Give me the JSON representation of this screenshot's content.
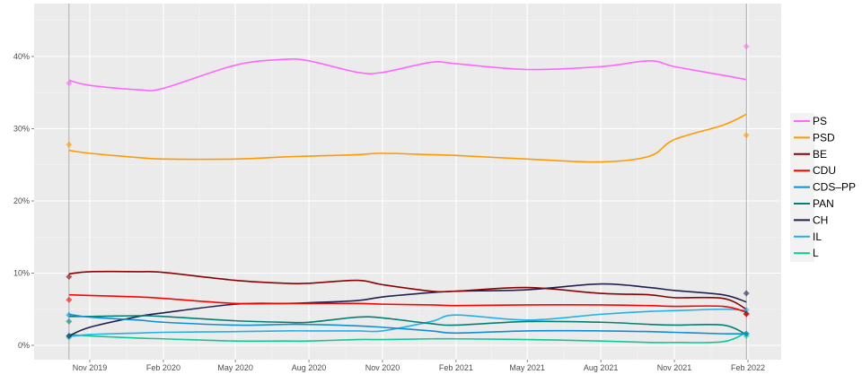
{
  "chart_data": {
    "type": "line",
    "title": "",
    "xlabel": "",
    "ylabel": "",
    "ylim": [
      -1.5,
      47
    ],
    "xlim": [
      "2019-09-10",
      "2022-02-20"
    ],
    "grid": true,
    "legend_position": "right",
    "y_ticks": [
      "0%",
      "10%",
      "20%",
      "30%",
      "40%"
    ],
    "y_tick_values": [
      0,
      10,
      20,
      30,
      40
    ],
    "x_ticks": [
      "Nov 2019",
      "Feb 2020",
      "May 2020",
      "Aug 2020",
      "Nov 2020",
      "Feb 2021",
      "May 2021",
      "Aug 2021",
      "Nov 2021",
      "Feb 2022"
    ],
    "x_tick_dates": [
      "2019-11-01",
      "2020-02-01",
      "2020-05-01",
      "2020-08-01",
      "2020-11-01",
      "2021-02-01",
      "2021-05-01",
      "2021-08-01",
      "2021-11-01",
      "2022-02-01"
    ],
    "election_dates": [
      "2019-10-06",
      "2022-01-30"
    ],
    "x": [
      "2019-10-06",
      "2019-11-01",
      "2020-01-01",
      "2020-02-01",
      "2020-05-01",
      "2020-07-01",
      "2020-08-01",
      "2020-10-01",
      "2020-11-01",
      "2021-01-01",
      "2021-02-01",
      "2021-05-01",
      "2021-08-01",
      "2021-10-01",
      "2021-11-01",
      "2022-01-01",
      "2022-01-30"
    ],
    "series": [
      {
        "name": "PS",
        "color": "#ff66ff",
        "values": [
          36.7,
          36.0,
          35.4,
          35.6,
          38.8,
          39.6,
          39.4,
          37.8,
          37.8,
          39.2,
          39.0,
          38.2,
          38.6,
          39.4,
          38.6,
          37.4,
          36.8
        ],
        "election_results": [
          36.3,
          41.4
        ]
      },
      {
        "name": "PSD",
        "color": "#ff9900",
        "values": [
          27.0,
          26.6,
          26.0,
          25.8,
          25.8,
          26.1,
          26.2,
          26.4,
          26.6,
          26.4,
          26.3,
          25.8,
          25.4,
          26.2,
          28.5,
          30.5,
          32.0
        ],
        "election_results": [
          27.8,
          29.1
        ]
      },
      {
        "name": "BE",
        "color": "#8b0000",
        "values": [
          9.9,
          10.2,
          10.2,
          10.1,
          9.0,
          8.6,
          8.6,
          9.0,
          8.4,
          7.5,
          7.5,
          8.0,
          7.2,
          7.0,
          6.6,
          6.5,
          5.0
        ],
        "election_results": [
          9.5,
          4.4
        ]
      },
      {
        "name": "CDU",
        "color": "#ff0000",
        "values": [
          7.0,
          6.9,
          6.7,
          6.5,
          5.8,
          5.8,
          5.8,
          5.8,
          5.7,
          5.6,
          5.5,
          5.6,
          5.6,
          5.5,
          5.4,
          5.4,
          4.6
        ],
        "election_results": [
          6.3,
          4.3
        ]
      },
      {
        "name": "CDS–PP",
        "color": "#0b8fd8",
        "values": [
          4.3,
          3.9,
          3.5,
          3.2,
          2.8,
          2.9,
          2.9,
          2.7,
          2.5,
          2.0,
          1.7,
          2.0,
          2.0,
          1.9,
          1.8,
          1.6,
          1.6
        ],
        "election_results": [
          4.2,
          1.6
        ]
      },
      {
        "name": "PAN",
        "color": "#008075",
        "values": [
          4.0,
          4.0,
          4.1,
          4.0,
          3.4,
          3.2,
          3.2,
          3.9,
          3.8,
          3.0,
          2.8,
          3.3,
          3.2,
          2.9,
          2.8,
          2.8,
          1.5
        ],
        "election_results": [
          3.3,
          1.6
        ]
      },
      {
        "name": "CH",
        "color": "#202050",
        "values": [
          1.3,
          2.5,
          4.0,
          4.5,
          5.7,
          5.8,
          5.9,
          6.2,
          6.7,
          7.3,
          7.5,
          7.7,
          8.5,
          8.0,
          7.6,
          7.0,
          6.0
        ],
        "election_results": [
          1.3,
          7.2
        ]
      },
      {
        "name": "IL",
        "color": "#22b0ea",
        "values": [
          1.2,
          1.5,
          1.7,
          1.8,
          1.9,
          2.0,
          2.0,
          2.0,
          2.0,
          3.3,
          4.2,
          3.5,
          4.3,
          4.7,
          4.8,
          5.0,
          4.8
        ],
        "election_results": [
          1.3,
          4.9
        ]
      },
      {
        "name": "L",
        "color": "#10c896",
        "values": [
          1.5,
          1.3,
          1.0,
          0.9,
          0.6,
          0.6,
          0.6,
          0.8,
          0.8,
          0.9,
          0.9,
          0.8,
          0.6,
          0.4,
          0.4,
          0.5,
          1.8
        ],
        "election_results": [
          1.1,
          1.3
        ]
      }
    ]
  }
}
